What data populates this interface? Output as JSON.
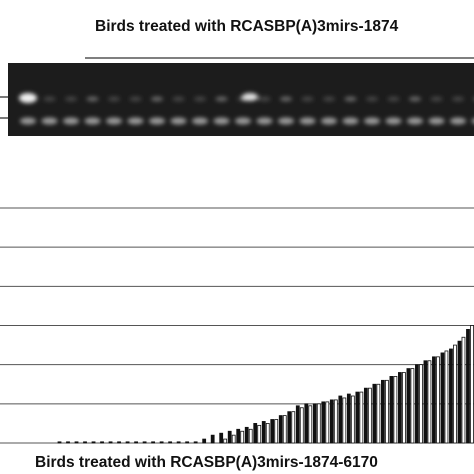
{
  "gel_title": "Birds treated with RCASBP(A)3mirs-1874",
  "chart_data": {
    "type": "bar",
    "xlabel": "Birds treated with RCASBP(A)3mirs-1874-6170",
    "ylim": [
      0,
      6
    ],
    "series": [
      {
        "color": "#111111",
        "values": [
          0.03,
          0.03,
          0.03,
          0.03,
          0.03,
          0.03,
          0.03,
          0.03,
          0.03,
          0.03,
          0.03,
          0.03,
          0.03,
          0.03,
          0.03,
          0.03,
          0.03,
          0.1,
          0.2,
          0.25,
          0.3,
          0.35,
          0.4,
          0.5,
          0.55,
          0.6,
          0.7,
          0.8,
          0.95,
          1.0,
          1.0,
          1.05,
          1.1,
          1.2,
          1.25,
          1.3,
          1.4,
          1.5,
          1.6,
          1.7,
          1.8,
          1.9,
          2.0,
          2.1,
          2.2,
          2.3,
          2.4,
          2.6,
          2.9
        ]
      },
      {
        "color": "#ffffff",
        "values": [
          0.0,
          0.0,
          0.0,
          0.0,
          0.0,
          0.0,
          0.0,
          0.0,
          0.0,
          0.0,
          0.0,
          0.0,
          0.0,
          0.0,
          0.0,
          0.0,
          0.0,
          0.0,
          0.0,
          0.1,
          0.2,
          0.3,
          0.35,
          0.45,
          0.5,
          0.6,
          0.7,
          0.8,
          0.9,
          0.95,
          1.0,
          1.05,
          1.1,
          1.15,
          1.2,
          1.3,
          1.4,
          1.5,
          1.6,
          1.7,
          1.8,
          1.9,
          2.0,
          2.1,
          2.2,
          2.35,
          2.5,
          2.7,
          3.0
        ]
      }
    ]
  }
}
